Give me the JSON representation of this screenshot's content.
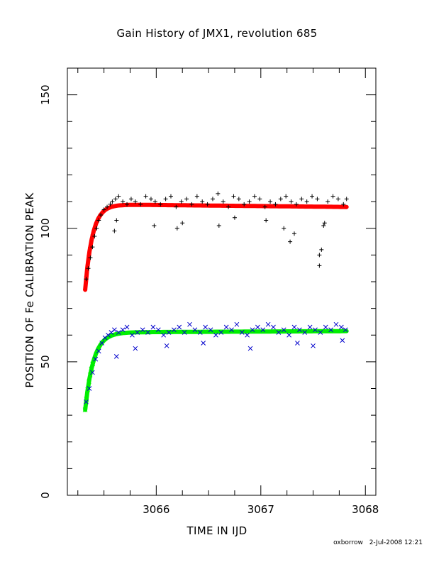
{
  "chart_data": {
    "type": "scatter",
    "title": "Gain History of JMX1, revolution 685",
    "xlabel": "TIME IN IJD",
    "ylabel": "POSITION OF Fe CALIBRATION PEAK",
    "xlim": [
      3065.15,
      3068.1
    ],
    "ylim": [
      0,
      160
    ],
    "x_ticks": [
      3066,
      3067,
      3068
    ],
    "y_ticks": [
      0,
      50,
      100,
      150
    ],
    "x_minor_step": 0.25,
    "y_minor_step": 10,
    "grid": false,
    "legend": "none",
    "series": [
      {
        "marker": "plus",
        "color": "#000000",
        "trend": {
          "start_x": 3065.32,
          "end_x": 3067.82,
          "start_y": 77,
          "plateau_y": 109,
          "end_y": 108,
          "rise_time": 0.07
        },
        "x": [
          3065.33,
          3065.35,
          3065.37,
          3065.39,
          3065.41,
          3065.43,
          3065.45,
          3065.47,
          3065.5,
          3065.53,
          3065.56,
          3065.58,
          3065.61,
          3065.64,
          3065.68,
          3065.72,
          3065.76,
          3065.8,
          3065.85,
          3065.9,
          3065.95,
          3065.99,
          3066.04,
          3066.09,
          3066.14,
          3066.19,
          3066.24,
          3066.29,
          3066.34,
          3066.39,
          3066.44,
          3066.49,
          3066.54,
          3066.59,
          3066.64,
          3066.69,
          3066.74,
          3066.79,
          3066.84,
          3066.89,
          3066.94,
          3066.99,
          3067.04,
          3067.09,
          3067.14,
          3067.19,
          3067.24,
          3067.29,
          3067.34,
          3067.39,
          3067.44,
          3067.49,
          3067.54,
          3067.56,
          3067.58,
          3067.6,
          3067.64,
          3067.69,
          3067.74,
          3067.79,
          3067.82,
          3065.6,
          3065.62,
          3065.98,
          3066.2,
          3066.25,
          3066.6,
          3066.75,
          3067.05,
          3067.22,
          3067.28,
          3067.32,
          3067.56,
          3067.61
        ],
        "y": [
          81,
          85,
          89,
          93,
          97,
          100,
          103,
          105,
          107,
          108,
          109,
          110,
          111,
          112,
          110,
          109,
          111,
          110,
          109,
          112,
          111,
          110,
          109,
          111,
          112,
          108,
          110,
          111,
          109,
          112,
          110,
          109,
          111,
          113,
          110,
          108,
          112,
          111,
          109,
          110,
          112,
          111,
          108,
          110,
          109,
          111,
          112,
          110,
          109,
          111,
          110,
          112,
          111,
          90,
          92,
          101,
          110,
          112,
          111,
          109,
          111,
          99,
          103,
          101,
          100,
          102,
          101,
          104,
          103,
          100,
          95,
          98,
          86,
          102
        ]
      },
      {
        "marker": "cross",
        "color": "#0000cc",
        "trend": {
          "start_x": 3065.32,
          "end_x": 3067.82,
          "start_y": 32,
          "plateau_y": 61,
          "end_y": 61.5,
          "rise_time": 0.08
        },
        "x": [
          3065.33,
          3065.36,
          3065.39,
          3065.42,
          3065.45,
          3065.48,
          3065.51,
          3065.54,
          3065.57,
          3065.6,
          3065.64,
          3065.68,
          3065.72,
          3065.77,
          3065.82,
          3065.87,
          3065.92,
          3065.97,
          3066.02,
          3066.07,
          3066.12,
          3066.17,
          3066.22,
          3066.27,
          3066.32,
          3066.37,
          3066.42,
          3066.47,
          3066.52,
          3066.57,
          3066.62,
          3066.67,
          3066.72,
          3066.77,
          3066.82,
          3066.87,
          3066.92,
          3066.97,
          3067.02,
          3067.07,
          3067.12,
          3067.17,
          3067.22,
          3067.27,
          3067.32,
          3067.37,
          3067.42,
          3067.47,
          3067.52,
          3067.57,
          3067.62,
          3067.67,
          3067.72,
          3067.77,
          3067.81,
          3065.62,
          3065.8,
          3066.1,
          3066.45,
          3066.9,
          3067.35,
          3067.5,
          3067.78
        ],
        "y": [
          35,
          40,
          46,
          51,
          54,
          57,
          59,
          60,
          61,
          62,
          61,
          62,
          63,
          60,
          61,
          62,
          61,
          63,
          62,
          60,
          61,
          62,
          63,
          61,
          64,
          62,
          61,
          63,
          62,
          60,
          61,
          63,
          62,
          64,
          61,
          60,
          62,
          63,
          62,
          64,
          63,
          61,
          62,
          60,
          63,
          62,
          61,
          63,
          62,
          61,
          63,
          62,
          64,
          63,
          62,
          52,
          55,
          56,
          57,
          55,
          57,
          56,
          58
        ]
      }
    ]
  },
  "footer": {
    "author": "oxborrow",
    "date": "2-Jul-2008 12:21"
  }
}
